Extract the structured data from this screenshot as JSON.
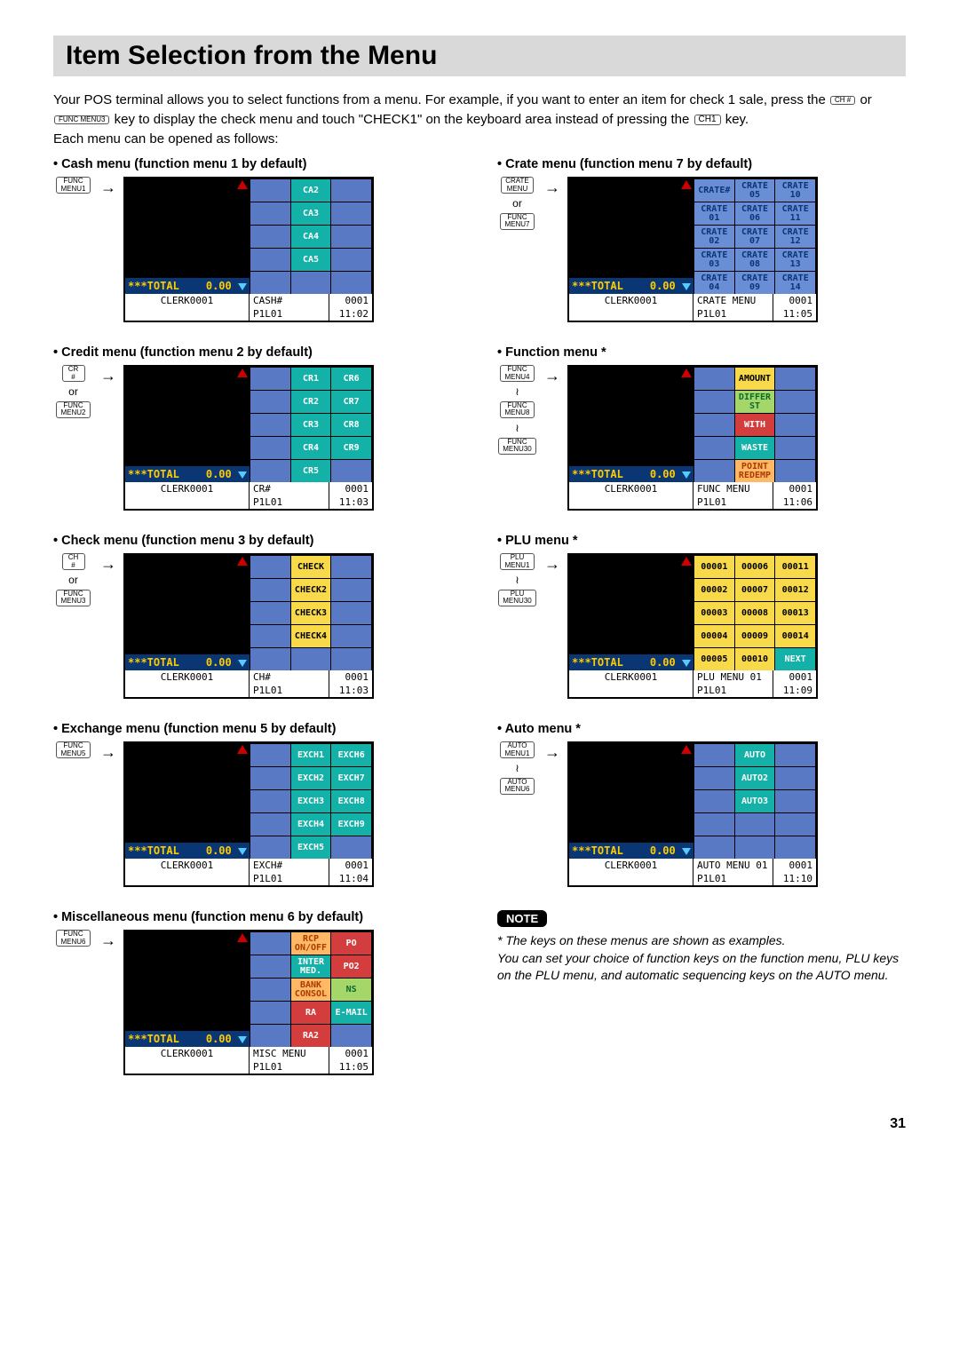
{
  "title": "Item Selection from the Menu",
  "intro_1": "Your POS terminal allows you to select functions from a menu. For example, if you want to enter an item for check 1 sale, press the ",
  "intro_2": " or ",
  "intro_3": " key to display the check menu and touch \"CHECK1\" on the keyboard area instead of pressing the ",
  "intro_4": " key.",
  "intro_5": "Each menu can be opened as follows:",
  "key_ch_hash": "CH\n#",
  "key_func_menu3": "FUNC\nMENU3",
  "key_ch1": "CH1",
  "page_number": "31",
  "note_label": "NOTE",
  "note_text": "* The keys on these menus are shown as examples.\nYou can set your choice of function keys on the function menu, PLU keys on the PLU menu, and automatic sequencing keys on the AUTO menu.",
  "common": {
    "total_label": "***TOTAL",
    "total_value": "0.00",
    "clerk": "CLERK0001",
    "p1l01": "P1L01",
    "num0001": "0001",
    "or": "or",
    "tilde": "≀"
  },
  "colors": {
    "teal_bg": "#13b1a7",
    "teal_fg": "#ffffff",
    "yellow_bg": "#f8d94a",
    "yellow_fg": "#000000",
    "red_bg": "#d43d3d",
    "red_fg": "#ffffff",
    "blue_bg": "#6a8ed6",
    "blue_fg": "#0a3673",
    "green_bg": "#a5d66a",
    "green_fg": "#0a6b2f",
    "orange_bg": "#ffb866",
    "orange_fg": "#aa3b00"
  },
  "menus": {
    "cash": {
      "heading": "• Cash menu (function menu 1 by default)",
      "keys": [
        "FUNC\nMENU1"
      ],
      "separator": "",
      "status_mid": "CASH#",
      "time": "11:02",
      "grid_style": "teal",
      "rows": 5,
      "items": [
        [
          "",
          "CA2",
          ""
        ],
        [
          "",
          "CA3",
          ""
        ],
        [
          "",
          "CA4",
          ""
        ],
        [
          "",
          "CA5",
          ""
        ],
        [
          "",
          "",
          ""
        ]
      ]
    },
    "credit": {
      "heading": "• Credit menu (function menu 2 by default)",
      "keys": [
        "CR\n#",
        "FUNC\nMENU2"
      ],
      "separator": "or",
      "status_mid": "CR#",
      "time": "11:03",
      "grid_style": "teal",
      "rows": 5,
      "items": [
        [
          "",
          "CR1",
          "CR6"
        ],
        [
          "",
          "CR2",
          "CR7"
        ],
        [
          "",
          "CR3",
          "CR8"
        ],
        [
          "",
          "CR4",
          "CR9"
        ],
        [
          "",
          "CR5",
          ""
        ]
      ]
    },
    "check": {
      "heading": "• Check menu (function menu 3 by default)",
      "keys": [
        "CH\n#",
        "FUNC\nMENU3"
      ],
      "separator": "or",
      "status_mid": "CH#",
      "time": "11:03",
      "grid_style": "yellow",
      "rows": 5,
      "items": [
        [
          "",
          "CHECK",
          ""
        ],
        [
          "",
          "CHECK2",
          ""
        ],
        [
          "",
          "CHECK3",
          ""
        ],
        [
          "",
          "CHECK4",
          ""
        ],
        [
          "",
          "",
          ""
        ]
      ]
    },
    "exchange": {
      "heading": "• Exchange menu (function menu 5 by default)",
      "keys": [
        "FUNC\nMENU5"
      ],
      "separator": "",
      "status_mid": "EXCH#",
      "time": "11:04",
      "grid_style": "teal",
      "rows": 5,
      "items": [
        [
          "",
          "EXCH1",
          "EXCH6"
        ],
        [
          "",
          "EXCH2",
          "EXCH7"
        ],
        [
          "",
          "EXCH3",
          "EXCH8"
        ],
        [
          "",
          "EXCH4",
          "EXCH9"
        ],
        [
          "",
          "EXCH5",
          ""
        ]
      ]
    },
    "misc": {
      "heading": "• Miscellaneous menu (function menu 6 by default)",
      "keys": [
        "FUNC\nMENU6"
      ],
      "separator": "",
      "status_mid": "MISC MENU",
      "time": "11:05",
      "grid_style": "mixed_misc",
      "rows": 5,
      "items": [
        [
          "",
          {
            "t": "RCP\nON/OFF",
            "c": "orange"
          },
          {
            "t": "PO",
            "c": "red"
          }
        ],
        [
          "",
          {
            "t": "INTER\nMED.",
            "c": "teal"
          },
          {
            "t": "PO2",
            "c": "red"
          }
        ],
        [
          "",
          {
            "t": "BANK\nCONSOL",
            "c": "orange"
          },
          {
            "t": "NS",
            "c": "green"
          }
        ],
        [
          "",
          {
            "t": "RA",
            "c": "red"
          },
          {
            "t": "E-MAIL",
            "c": "teal"
          }
        ],
        [
          "",
          {
            "t": "RA2",
            "c": "red"
          },
          ""
        ]
      ]
    },
    "crate": {
      "heading": "• Crate menu (function menu 7 by default)",
      "keys": [
        "CRATE\nMENU",
        "FUNC\nMENU7"
      ],
      "separator": "or",
      "status_mid": "CRATE MENU",
      "time": "11:05",
      "grid_style": "blue",
      "rows": 5,
      "items": [
        [
          "CRATE#",
          "CRATE\n05",
          "CRATE\n10"
        ],
        [
          "CRATE\n01",
          "CRATE\n06",
          "CRATE\n11"
        ],
        [
          "CRATE\n02",
          "CRATE\n07",
          "CRATE\n12"
        ],
        [
          "CRATE\n03",
          "CRATE\n08",
          "CRATE\n13"
        ],
        [
          "CRATE\n04",
          "CRATE\n09",
          "CRATE\n14"
        ]
      ]
    },
    "function": {
      "heading": "• Function menu *",
      "keys": [
        "FUNC\nMENU4",
        "FUNC\nMENU8",
        "FUNC\nMENU30"
      ],
      "separator": "tilde",
      "status_mid": "FUNC MENU",
      "time": "11:06",
      "grid_style": "mixed_func",
      "rows": 5,
      "items": [
        [
          "",
          {
            "t": "AMOUNT",
            "c": "yellow"
          },
          ""
        ],
        [
          "",
          {
            "t": "DIFFER\nST",
            "c": "green"
          },
          ""
        ],
        [
          "",
          {
            "t": "WITH",
            "c": "red"
          },
          ""
        ],
        [
          "",
          {
            "t": "WASTE",
            "c": "teal"
          },
          ""
        ],
        [
          "",
          {
            "t": "POINT\nREDEMP",
            "c": "orange"
          },
          ""
        ]
      ]
    },
    "plu": {
      "heading": "• PLU menu *",
      "keys": [
        "PLU\nMENU1",
        "PLU\nMENU30"
      ],
      "separator": "tilde",
      "status_mid": "PLU MENU 01",
      "time": "11:09",
      "grid_style": "yellow",
      "rows": 5,
      "items": [
        [
          "00001",
          "00006",
          "00011"
        ],
        [
          "00002",
          "00007",
          "00012"
        ],
        [
          "00003",
          "00008",
          "00013"
        ],
        [
          "00004",
          "00009",
          "00014"
        ],
        [
          "00005",
          "00010",
          {
            "t": "NEXT",
            "c": "teal"
          }
        ]
      ]
    },
    "auto": {
      "heading": "• Auto menu *",
      "keys": [
        "AUTO\nMENU1",
        "AUTO\nMENU6"
      ],
      "separator": "tilde",
      "status_mid": "AUTO MENU 01",
      "time": "11:10",
      "grid_style": "teal",
      "rows": 5,
      "items": [
        [
          "",
          "AUTO",
          ""
        ],
        [
          "",
          "AUTO2",
          ""
        ],
        [
          "",
          "AUTO3",
          ""
        ],
        [
          "",
          "",
          ""
        ],
        [
          "",
          "",
          ""
        ]
      ]
    }
  },
  "left_order": [
    "cash",
    "credit",
    "check",
    "exchange",
    "misc"
  ],
  "right_order": [
    "crate",
    "function",
    "plu",
    "auto"
  ]
}
